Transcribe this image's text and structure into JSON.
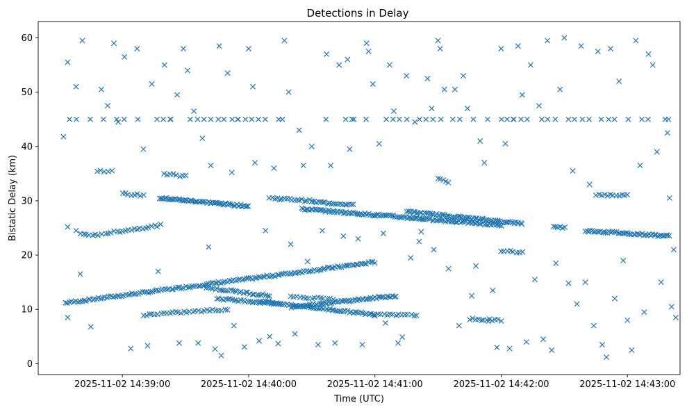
{
  "chart_data": {
    "type": "scatter",
    "title": "Detections in Delay",
    "xlabel": "Time (UTC)",
    "ylabel": "Bistatic Delay (km)",
    "marker": "x",
    "color": "#1f77b4",
    "grid": false,
    "legend": "none",
    "xlim": [
      "2025-11-02 14:38:20",
      "2025-11-02 14:43:25"
    ],
    "ylim": [
      -2,
      63
    ],
    "x_ticks": [
      "2025-11-02 14:39:00",
      "2025-11-02 14:40:00",
      "2025-11-02 14:41:00",
      "2025-11-02 14:42:00",
      "2025-11-02 14:43:00"
    ],
    "y_ticks": [
      "0",
      "10",
      "20",
      "30",
      "40",
      "50",
      "60"
    ],
    "series": [
      {
        "track_segments": [
          {
            "from": [
              "2025-11-02 14:38:33",
              11.2
            ],
            "to": [
              "2025-11-02 14:41:00",
              18.7
            ],
            "points": 150
          },
          {
            "from": [
              "2025-11-02 14:38:52",
              24.0
            ],
            "to": [
              "2025-11-02 14:39:18",
              25.5
            ],
            "points": 20
          },
          {
            "from": [
              "2025-11-02 14:39:00",
              31.3
            ],
            "to": [
              "2025-11-02 14:39:10",
              31.0
            ],
            "points": 8
          },
          {
            "from": [
              "2025-11-02 14:39:18",
              30.5
            ],
            "to": [
              "2025-11-02 14:40:00",
              29.0
            ],
            "points": 60
          },
          {
            "from": [
              "2025-11-02 14:40:10",
              30.5
            ],
            "to": [
              "2025-11-02 14:40:30",
              30.0
            ],
            "points": 18
          },
          {
            "from": [
              "2025-11-02 14:40:30",
              29.8
            ],
            "to": [
              "2025-11-02 14:40:50",
              29.3
            ],
            "points": 20
          },
          {
            "from": [
              "2025-11-02 14:40:25",
              28.5
            ],
            "to": [
              "2025-11-02 14:42:00",
              25.5
            ],
            "points": 120
          },
          {
            "from": [
              "2025-11-02 14:41:15",
              28.0
            ],
            "to": [
              "2025-11-02 14:42:10",
              25.8
            ],
            "points": 70
          },
          {
            "from": [
              "2025-11-02 14:42:45",
              31.1
            ],
            "to": [
              "2025-11-02 14:43:00",
              31.0
            ],
            "points": 12
          },
          {
            "from": [
              "2025-11-02 14:42:40",
              24.5
            ],
            "to": [
              "2025-11-02 14:43:20",
              23.5
            ],
            "points": 50
          },
          {
            "from": [
              "2025-11-02 14:39:10",
              9.0
            ],
            "to": [
              "2025-11-02 14:39:50",
              10.0
            ],
            "points": 30
          },
          {
            "from": [
              "2025-11-02 14:39:40",
              14.0
            ],
            "to": [
              "2025-11-02 14:40:10",
              12.5
            ],
            "points": 30
          },
          {
            "from": [
              "2025-11-02 14:39:45",
              12.0
            ],
            "to": [
              "2025-11-02 14:40:15",
              11.0
            ],
            "points": 30
          },
          {
            "from": [
              "2025-11-02 14:40:05",
              11.5
            ],
            "to": [
              "2025-11-02 14:41:00",
              9.0
            ],
            "points": 60
          },
          {
            "from": [
              "2025-11-02 14:40:20",
              10.5
            ],
            "to": [
              "2025-11-02 14:41:10",
              12.5
            ],
            "points": 60
          },
          {
            "from": [
              "2025-11-02 14:40:20",
              12.3
            ],
            "to": [
              "2025-11-02 14:40:40",
              12.0
            ],
            "points": 15
          },
          {
            "from": [
              "2025-11-02 14:41:00",
              9.0
            ],
            "to": [
              "2025-11-02 14:41:20",
              8.9
            ],
            "points": 15
          },
          {
            "from": [
              "2025-11-02 14:39:20",
              35.0
            ],
            "to": [
              "2025-11-02 14:39:30",
              34.5
            ],
            "points": 8
          },
          {
            "from": [
              "2025-11-02 14:41:30",
              34.0
            ],
            "to": [
              "2025-11-02 14:41:35",
              33.5
            ],
            "points": 5
          },
          {
            "from": [
              "2025-11-02 14:41:45",
              8.2
            ],
            "to": [
              "2025-11-02 14:42:00",
              8.0
            ],
            "points": 12
          },
          {
            "from": [
              "2025-11-02 14:42:00",
              20.8
            ],
            "to": [
              "2025-11-02 14:42:10",
              20.5
            ],
            "points": 8
          },
          {
            "from": [
              "2025-11-02 14:42:25",
              25.2
            ],
            "to": [
              "2025-11-02 14:42:30",
              25.0
            ],
            "points": 6
          },
          {
            "from": [
              "2025-11-02 14:38:40",
              23.8
            ],
            "to": [
              "2025-11-02 14:38:50",
              23.8
            ],
            "points": 8
          },
          {
            "from": [
              "2025-11-02 14:38:48",
              35.5
            ],
            "to": [
              "2025-11-02 14:38:55",
              35.5
            ],
            "points": 5
          }
        ],
        "constant_delay_rows": [
          45.0
        ],
        "points": [
          [
            "2025-11-02 14:38:32",
            41.8
          ],
          [
            "2025-11-02 14:38:34",
            55.5
          ],
          [
            "2025-11-02 14:38:38",
            51.0
          ],
          [
            "2025-11-02 14:38:41",
            59.5
          ],
          [
            "2025-11-02 14:38:34",
            25.2
          ],
          [
            "2025-11-02 14:38:38",
            24.5
          ],
          [
            "2025-11-02 14:38:34",
            8.5
          ],
          [
            "2025-11-02 14:38:40",
            16.5
          ],
          [
            "2025-11-02 14:38:45",
            6.8
          ],
          [
            "2025-11-02 14:38:50",
            50.5
          ],
          [
            "2025-11-02 14:38:53",
            47.5
          ],
          [
            "2025-11-02 14:38:56",
            59.0
          ],
          [
            "2025-11-02 14:38:58",
            44.5
          ],
          [
            "2025-11-02 14:39:01",
            56.5
          ],
          [
            "2025-11-02 14:39:04",
            2.8
          ],
          [
            "2025-11-02 14:39:07",
            58.0
          ],
          [
            "2025-11-02 14:39:10",
            39.5
          ],
          [
            "2025-11-02 14:39:12",
            3.3
          ],
          [
            "2025-11-02 14:39:14",
            51.5
          ],
          [
            "2025-11-02 14:39:17",
            17.0
          ],
          [
            "2025-11-02 14:39:20",
            55.0
          ],
          [
            "2025-11-02 14:39:23",
            45.0
          ],
          [
            "2025-11-02 14:39:26",
            49.5
          ],
          [
            "2025-11-02 14:39:27",
            3.8
          ],
          [
            "2025-11-02 14:39:29",
            58.0
          ],
          [
            "2025-11-02 14:39:31",
            54.0
          ],
          [
            "2025-11-02 14:39:34",
            46.5
          ],
          [
            "2025-11-02 14:39:36",
            3.8
          ],
          [
            "2025-11-02 14:39:38",
            41.5
          ],
          [
            "2025-11-02 14:39:41",
            21.5
          ],
          [
            "2025-11-02 14:39:42",
            36.5
          ],
          [
            "2025-11-02 14:39:44",
            2.7
          ],
          [
            "2025-11-02 14:39:46",
            58.5
          ],
          [
            "2025-11-02 14:39:47",
            1.5
          ],
          [
            "2025-11-02 14:39:50",
            53.5
          ],
          [
            "2025-11-02 14:39:52",
            35.2
          ],
          [
            "2025-11-02 14:39:53",
            7.0
          ],
          [
            "2025-11-02 14:39:55",
            45.0
          ],
          [
            "2025-11-02 14:39:58",
            3.1
          ],
          [
            "2025-11-02 14:40:00",
            58.0
          ],
          [
            "2025-11-02 14:40:02",
            51.0
          ],
          [
            "2025-11-02 14:40:03",
            37.0
          ],
          [
            "2025-11-02 14:40:05",
            4.2
          ],
          [
            "2025-11-02 14:40:08",
            24.5
          ],
          [
            "2025-11-02 14:40:10",
            5.0
          ],
          [
            "2025-11-02 14:40:12",
            36.0
          ],
          [
            "2025-11-02 14:40:14",
            3.7
          ],
          [
            "2025-11-02 14:40:16",
            45.0
          ],
          [
            "2025-11-02 14:40:17",
            59.5
          ],
          [
            "2025-11-02 14:40:19",
            50.0
          ],
          [
            "2025-11-02 14:40:20",
            22.0
          ],
          [
            "2025-11-02 14:40:22",
            5.5
          ],
          [
            "2025-11-02 14:40:24",
            43.0
          ],
          [
            "2025-11-02 14:40:26",
            36.5
          ],
          [
            "2025-11-02 14:40:28",
            18.8
          ],
          [
            "2025-11-02 14:40:30",
            40.0
          ],
          [
            "2025-11-02 14:40:33",
            3.5
          ],
          [
            "2025-11-02 14:40:35",
            24.5
          ],
          [
            "2025-11-02 14:40:37",
            57.0
          ],
          [
            "2025-11-02 14:40:39",
            36.5
          ],
          [
            "2025-11-02 14:40:41",
            3.8
          ],
          [
            "2025-11-02 14:40:43",
            55.0
          ],
          [
            "2025-11-02 14:40:45",
            23.5
          ],
          [
            "2025-11-02 14:40:47",
            56.0
          ],
          [
            "2025-11-02 14:40:48",
            39.5
          ],
          [
            "2025-11-02 14:40:50",
            45.0
          ],
          [
            "2025-11-02 14:40:52",
            23.0
          ],
          [
            "2025-11-02 14:40:54",
            3.5
          ],
          [
            "2025-11-02 14:40:56",
            59.0
          ],
          [
            "2025-11-02 14:40:57",
            57.5
          ],
          [
            "2025-11-02 14:40:59",
            51.5
          ],
          [
            "2025-11-02 14:41:02",
            40.5
          ],
          [
            "2025-11-02 14:41:04",
            24.0
          ],
          [
            "2025-11-02 14:41:05",
            7.5
          ],
          [
            "2025-11-02 14:41:07",
            55.0
          ],
          [
            "2025-11-02 14:41:09",
            46.5
          ],
          [
            "2025-11-02 14:41:11",
            3.8
          ],
          [
            "2025-11-02 14:41:13",
            4.9
          ],
          [
            "2025-11-02 14:41:15",
            53.0
          ],
          [
            "2025-11-02 14:41:17",
            19.5
          ],
          [
            "2025-11-02 14:41:19",
            44.5
          ],
          [
            "2025-11-02 14:41:21",
            22.5
          ],
          [
            "2025-11-02 14:41:22",
            24.3
          ],
          [
            "2025-11-02 14:41:25",
            52.5
          ],
          [
            "2025-11-02 14:41:27",
            47.0
          ],
          [
            "2025-11-02 14:41:28",
            21.0
          ],
          [
            "2025-11-02 14:41:30",
            59.5
          ],
          [
            "2025-11-02 14:41:31",
            58.0
          ],
          [
            "2025-11-02 14:41:33",
            50.5
          ],
          [
            "2025-11-02 14:41:35",
            17.5
          ],
          [
            "2025-11-02 14:41:38",
            50.5
          ],
          [
            "2025-11-02 14:41:40",
            7.0
          ],
          [
            "2025-11-02 14:41:42",
            53.0
          ],
          [
            "2025-11-02 14:41:44",
            47.0
          ],
          [
            "2025-11-02 14:41:46",
            12.5
          ],
          [
            "2025-11-02 14:41:48",
            18.0
          ],
          [
            "2025-11-02 14:41:50",
            41.0
          ],
          [
            "2025-11-02 14:41:52",
            37.0
          ],
          [
            "2025-11-02 14:41:54",
            7.8
          ],
          [
            "2025-11-02 14:41:56",
            13.5
          ],
          [
            "2025-11-02 14:41:58",
            3.0
          ],
          [
            "2025-11-02 14:42:00",
            58.0
          ],
          [
            "2025-11-02 14:42:02",
            40.5
          ],
          [
            "2025-11-02 14:42:04",
            2.8
          ],
          [
            "2025-11-02 14:42:06",
            45.0
          ],
          [
            "2025-11-02 14:42:08",
            58.5
          ],
          [
            "2025-11-02 14:42:10",
            49.5
          ],
          [
            "2025-11-02 14:42:12",
            4.0
          ],
          [
            "2025-11-02 14:42:14",
            55.0
          ],
          [
            "2025-11-02 14:42:16",
            15.5
          ],
          [
            "2025-11-02 14:42:18",
            47.5
          ],
          [
            "2025-11-02 14:42:20",
            4.5
          ],
          [
            "2025-11-02 14:42:22",
            59.5
          ],
          [
            "2025-11-02 14:42:24",
            2.5
          ],
          [
            "2025-11-02 14:42:26",
            18.5
          ],
          [
            "2025-11-02 14:42:28",
            50.5
          ],
          [
            "2025-11-02 14:42:30",
            60.0
          ],
          [
            "2025-11-02 14:42:32",
            14.8
          ],
          [
            "2025-11-02 14:42:34",
            35.5
          ],
          [
            "2025-11-02 14:42:36",
            11.0
          ],
          [
            "2025-11-02 14:42:38",
            58.5
          ],
          [
            "2025-11-02 14:42:40",
            15.0
          ],
          [
            "2025-11-02 14:42:42",
            33.0
          ],
          [
            "2025-11-02 14:42:44",
            7.0
          ],
          [
            "2025-11-02 14:42:46",
            57.5
          ],
          [
            "2025-11-02 14:42:48",
            3.5
          ],
          [
            "2025-11-02 14:42:50",
            1.2
          ],
          [
            "2025-11-02 14:42:52",
            58.0
          ],
          [
            "2025-11-02 14:42:54",
            12.0
          ],
          [
            "2025-11-02 14:42:56",
            52.0
          ],
          [
            "2025-11-02 14:42:58",
            19.0
          ],
          [
            "2025-11-02 14:43:00",
            8.0
          ],
          [
            "2025-11-02 14:43:02",
            2.5
          ],
          [
            "2025-11-02 14:43:04",
            59.5
          ],
          [
            "2025-11-02 14:43:06",
            36.5
          ],
          [
            "2025-11-02 14:43:08",
            9.5
          ],
          [
            "2025-11-02 14:43:10",
            57.0
          ],
          [
            "2025-11-02 14:43:12",
            55.0
          ],
          [
            "2025-11-02 14:43:14",
            39.0
          ],
          [
            "2025-11-02 14:43:16",
            15.0
          ],
          [
            "2025-11-02 14:43:18",
            45.0
          ],
          [
            "2025-11-02 14:43:19",
            42.5
          ],
          [
            "2025-11-02 14:43:20",
            30.5
          ],
          [
            "2025-11-02 14:43:21",
            10.5
          ],
          [
            "2025-11-02 14:43:22",
            21.0
          ],
          [
            "2025-11-02 14:43:23",
            8.5
          ]
        ],
        "scattered_points_note": null
      }
    ]
  }
}
